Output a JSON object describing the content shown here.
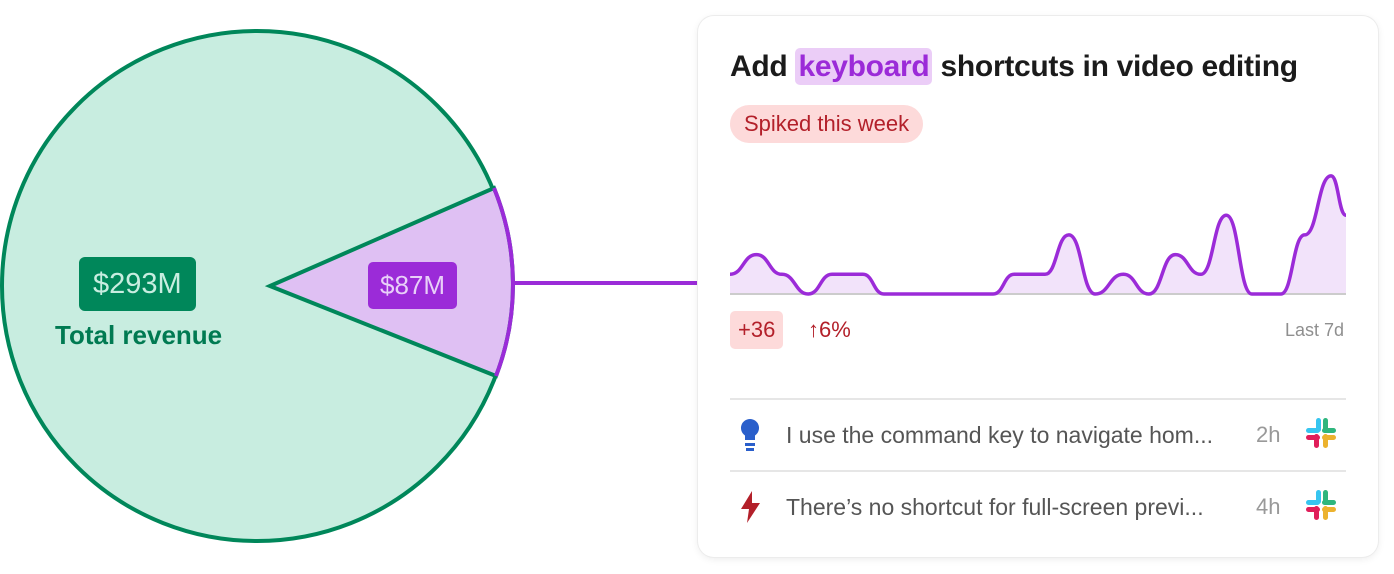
{
  "pie": {
    "total_value": "$293M",
    "total_label": "Total revenue",
    "slice_value": "$87M",
    "colors": {
      "total_fill": "#c8ede0",
      "total_stroke": "#00875a",
      "slice_fill": "#dfc0f3",
      "slice_stroke": "#9b2bd8"
    }
  },
  "card": {
    "title_pre": "Add",
    "title_highlight": "keyboard",
    "title_post": "shortcuts in video editing",
    "badge": "Spiked this week",
    "delta": "+36",
    "percent": "6%",
    "range": "Last 7d",
    "feedback": [
      {
        "icon": "lightbulb-icon",
        "text": "I use the command key to navigate hom...",
        "time": "2h",
        "source": "slack-icon"
      },
      {
        "icon": "lightning-icon",
        "text": "There’s no shortcut for full-screen previ...",
        "time": "4h",
        "source": "slack-icon"
      }
    ]
  },
  "chart_data": {
    "type": "area",
    "x": [
      0,
      0.3,
      0.59,
      0.89,
      1.16,
      1.51,
      1.75,
      2.99,
      3.23,
      3.58,
      3.85,
      4.15,
      4.47,
      4.76,
      5.06,
      5.35,
      5.64,
      5.93,
      6.26,
      6.53,
      6.83,
      7
    ],
    "values": [
      1,
      2,
      1,
      0,
      1,
      1,
      0,
      0,
      1,
      1,
      3,
      0,
      1,
      0,
      2,
      1,
      4,
      0,
      0,
      3,
      6,
      4
    ],
    "xlim": [
      0,
      7
    ],
    "ylim": [
      0,
      6.5
    ],
    "color": "#9b2bd8",
    "fill": "#f2e3fa"
  }
}
